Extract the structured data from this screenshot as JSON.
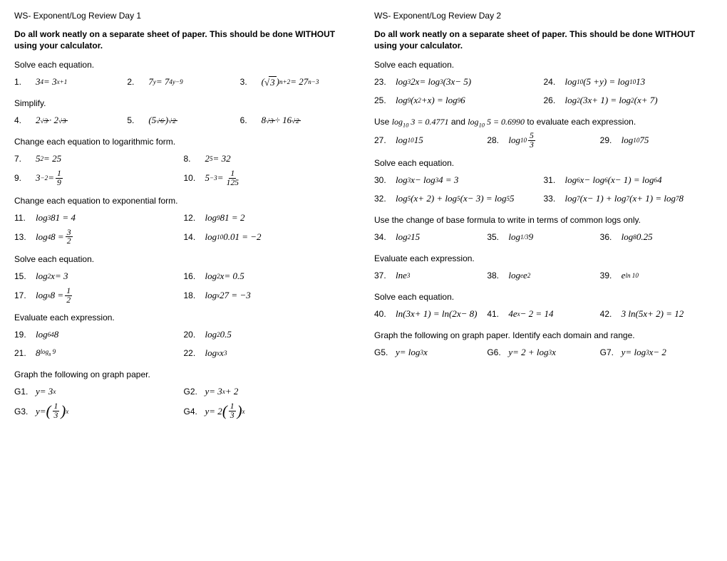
{
  "day1": {
    "title": "WS- Exponent/Log Review Day 1",
    "instructions": "Do all work neatly on a separate sheet of paper. This should be done WITHOUT using your calculator.",
    "s1": "Solve each equation.",
    "s2": "Simplify.",
    "s3": "Change each equation to logarithmic form.",
    "s4": "Change each equation to exponential form.",
    "s5": "Solve each equation.",
    "s6": "Evaluate each expression.",
    "s7": "Graph the following on graph paper.",
    "n1": "1.",
    "n2": "2.",
    "n3": "3.",
    "n4": "4.",
    "n5": "5.",
    "n6": "6.",
    "n7": "7.",
    "n8": "8.",
    "n9": "9.",
    "n10": "10.",
    "n11": "11.",
    "n12": "12.",
    "n13": "13.",
    "n14": "14.",
    "n15": "15.",
    "n16": "16.",
    "n17": "17.",
    "n18": "18.",
    "n19": "19.",
    "n20": "20.",
    "n21": "21.",
    "n22": "22.",
    "g1": "G1.",
    "g2": "G2.",
    "g3": "G3.",
    "g4": "G4."
  },
  "day2": {
    "title": "WS- Exponent/Log Review Day 2",
    "instructions": "Do all work neatly on a separate sheet of paper. This should be done WITHOUT using your calculator.",
    "s1": "Solve each equation.",
    "s2_pre": "Use ",
    "s2_mid": " and ",
    "s2_post": " to evaluate each expression.",
    "s3": "Solve each equation.",
    "s4": "Use the change of base formula to write in terms of common logs only.",
    "s5": "Evaluate each expression.",
    "s6": "Solve each equation.",
    "s7": "Graph the following on graph paper. Identify each domain and range.",
    "n23": "23.",
    "n24": "24.",
    "n25": "25.",
    "n26": "26.",
    "n27": "27.",
    "n28": "28.",
    "n29": "29.",
    "n30": "30.",
    "n31": "31.",
    "n32": "32.",
    "n33": "33.",
    "n34": "34.",
    "n35": "35.",
    "n36": "36.",
    "n37": "37.",
    "n38": "38.",
    "n39": "39.",
    "n40": "40.",
    "n41": "41.",
    "n42": "42.",
    "g5": "G5.",
    "g6": "G6.",
    "g7": "G7."
  }
}
